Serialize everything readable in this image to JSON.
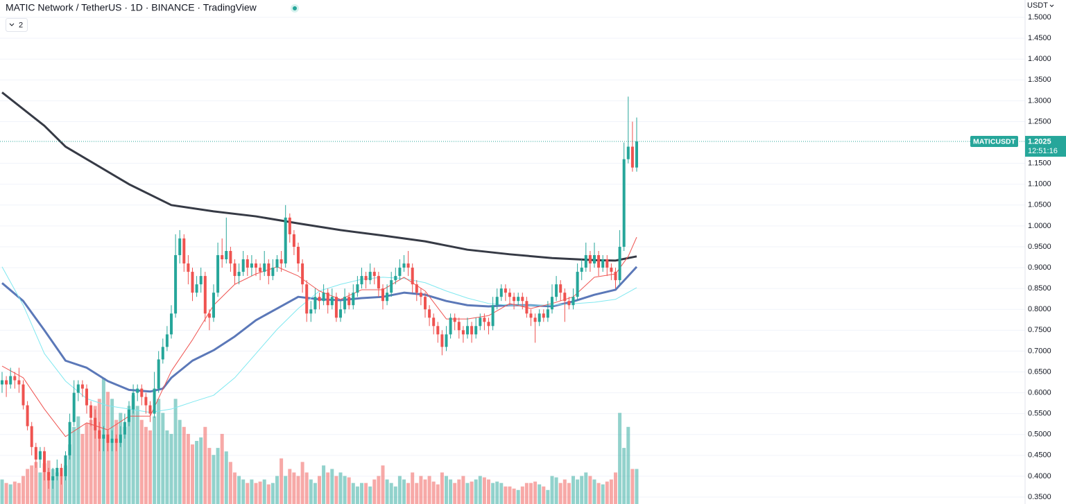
{
  "chart_data": {
    "type": "candlestick",
    "title": "MATIC Network / TetherUS · 1D · BINANCE · TradingView",
    "indicator_count": 2,
    "currency": "USDT",
    "symbol": "MATICUSDT",
    "countdown": "12:51:16",
    "up_color": "#26a69a",
    "down_color": "#ef5350",
    "grid": true,
    "ylim": [
      0.3334,
      1.5416
    ],
    "yticks": [
      {
        "value": 0.35,
        "label": "0.3500"
      },
      {
        "value": 0.4,
        "label": "0.4000"
      },
      {
        "value": 0.45,
        "label": "0.4500"
      },
      {
        "value": 0.5,
        "label": "0.5000"
      },
      {
        "value": 0.55,
        "label": "0.5500"
      },
      {
        "value": 0.6,
        "label": "0.6000"
      },
      {
        "value": 0.65,
        "label": "0.6500"
      },
      {
        "value": 0.7,
        "label": "0.7000"
      },
      {
        "value": 0.75,
        "label": "0.7500"
      },
      {
        "value": 0.8,
        "label": "0.8000"
      },
      {
        "value": 0.85,
        "label": "0.8500"
      },
      {
        "value": 0.9,
        "label": "0.9000"
      },
      {
        "value": 0.95,
        "label": "0.9500"
      },
      {
        "value": 1.0,
        "label": "1.0000"
      },
      {
        "value": 1.05,
        "label": "1.0500"
      },
      {
        "value": 1.1,
        "label": "1.1000"
      },
      {
        "value": 1.15,
        "label": "1.1500"
      },
      {
        "value": 1.25,
        "label": "1.2500"
      },
      {
        "value": 1.3,
        "label": "1.3000"
      },
      {
        "value": 1.35,
        "label": "1.3500"
      },
      {
        "value": 1.4,
        "label": "1.4000"
      },
      {
        "value": 1.45,
        "label": "1.4500"
      },
      {
        "value": 1.5,
        "label": "1.5000"
      }
    ],
    "open": [
      0.62,
      0.63,
      0.62,
      0.64,
      0.63,
      0.62,
      0.57,
      0.52,
      0.47,
      0.44,
      0.46,
      0.41,
      0.39,
      0.4,
      0.42,
      0.4,
      0.45,
      0.53,
      0.6,
      0.62,
      0.61,
      0.57,
      0.54,
      0.51,
      0.49,
      0.5,
      0.48,
      0.49,
      0.48,
      0.5,
      0.53,
      0.56,
      0.6,
      0.61,
      0.59,
      0.57,
      0.55,
      0.61,
      0.68,
      0.71,
      0.74,
      0.79,
      0.93,
      0.97,
      0.91,
      0.89,
      0.84,
      0.86,
      0.88,
      0.79,
      0.78,
      0.84,
      0.93,
      0.92,
      0.94,
      0.91,
      0.88,
      0.89,
      0.92,
      0.9,
      0.91,
      0.9,
      0.89,
      0.91,
      0.88,
      0.9,
      0.92,
      0.91,
      1.02,
      0.98,
      0.95,
      0.91,
      0.86,
      0.79,
      0.8,
      0.83,
      0.82,
      0.84,
      0.81,
      0.83,
      0.78,
      0.8,
      0.83,
      0.81,
      0.84,
      0.86,
      0.88,
      0.87,
      0.89,
      0.88,
      0.85,
      0.82,
      0.84,
      0.87,
      0.88,
      0.9,
      0.91,
      0.9,
      0.86,
      0.84,
      0.83,
      0.8,
      0.78,
      0.76,
      0.74,
      0.71,
      0.74,
      0.78,
      0.77,
      0.75,
      0.74,
      0.76,
      0.74,
      0.76,
      0.78,
      0.77,
      0.76,
      0.81,
      0.83,
      0.85,
      0.84,
      0.83,
      0.82,
      0.83,
      0.82,
      0.79,
      0.78,
      0.77,
      0.79,
      0.78,
      0.8,
      0.83,
      0.86,
      0.84,
      0.82,
      0.81,
      0.83,
      0.89,
      0.9,
      0.93,
      0.91,
      0.93,
      0.9,
      0.92,
      0.9,
      0.89,
      0.87,
      0.95,
      1.16,
      1.19,
      1.14
    ],
    "high": [
      0.65,
      0.64,
      0.66,
      0.65,
      0.66,
      0.63,
      0.58,
      0.53,
      0.48,
      0.47,
      0.47,
      0.42,
      0.42,
      0.44,
      0.43,
      0.46,
      0.55,
      0.63,
      0.63,
      0.63,
      0.62,
      0.58,
      0.56,
      0.53,
      0.52,
      0.51,
      0.51,
      0.5,
      0.52,
      0.55,
      0.58,
      0.62,
      0.62,
      0.62,
      0.6,
      0.58,
      0.65,
      0.7,
      0.73,
      0.76,
      0.81,
      0.98,
      0.99,
      0.98,
      0.93,
      0.9,
      0.88,
      0.9,
      0.89,
      0.8,
      0.86,
      0.96,
      0.97,
      1.02,
      0.95,
      0.92,
      0.91,
      0.94,
      0.93,
      0.93,
      0.92,
      0.91,
      0.94,
      0.92,
      0.92,
      0.93,
      0.94,
      1.05,
      1.03,
      0.99,
      0.96,
      0.92,
      0.87,
      0.82,
      0.85,
      0.84,
      0.86,
      0.85,
      0.85,
      0.84,
      0.82,
      0.85,
      0.84,
      0.86,
      0.88,
      0.9,
      0.89,
      0.91,
      0.9,
      0.89,
      0.86,
      0.86,
      0.89,
      0.9,
      0.92,
      0.93,
      0.94,
      0.91,
      0.87,
      0.85,
      0.84,
      0.81,
      0.79,
      0.77,
      0.75,
      0.76,
      0.79,
      0.79,
      0.78,
      0.76,
      0.78,
      0.77,
      0.78,
      0.79,
      0.79,
      0.78,
      0.83,
      0.85,
      0.86,
      0.86,
      0.85,
      0.84,
      0.84,
      0.84,
      0.83,
      0.8,
      0.79,
      0.8,
      0.8,
      0.82,
      0.86,
      0.88,
      0.87,
      0.85,
      0.83,
      0.85,
      0.91,
      0.92,
      0.96,
      0.94,
      0.96,
      0.94,
      0.93,
      0.93,
      0.91,
      0.9,
      0.99,
      1.2,
      1.31,
      1.25,
      1.26
    ],
    "low": [
      0.6,
      0.59,
      0.61,
      0.61,
      0.6,
      0.56,
      0.51,
      0.45,
      0.42,
      0.42,
      0.39,
      0.37,
      0.37,
      0.39,
      0.38,
      0.39,
      0.44,
      0.52,
      0.58,
      0.59,
      0.55,
      0.52,
      0.49,
      0.46,
      0.46,
      0.46,
      0.46,
      0.46,
      0.47,
      0.49,
      0.52,
      0.55,
      0.58,
      0.57,
      0.55,
      0.53,
      0.54,
      0.6,
      0.67,
      0.7,
      0.73,
      0.78,
      0.91,
      0.89,
      0.86,
      0.82,
      0.83,
      0.84,
      0.77,
      0.75,
      0.77,
      0.83,
      0.9,
      0.91,
      0.89,
      0.86,
      0.86,
      0.88,
      0.88,
      0.88,
      0.88,
      0.87,
      0.88,
      0.86,
      0.87,
      0.89,
      0.89,
      0.9,
      0.96,
      0.93,
      0.89,
      0.84,
      0.77,
      0.77,
      0.79,
      0.8,
      0.81,
      0.79,
      0.8,
      0.77,
      0.77,
      0.79,
      0.8,
      0.8,
      0.83,
      0.85,
      0.85,
      0.86,
      0.86,
      0.83,
      0.8,
      0.81,
      0.83,
      0.86,
      0.87,
      0.89,
      0.88,
      0.84,
      0.82,
      0.81,
      0.78,
      0.76,
      0.74,
      0.72,
      0.69,
      0.7,
      0.73,
      0.75,
      0.73,
      0.72,
      0.73,
      0.72,
      0.73,
      0.75,
      0.75,
      0.74,
      0.75,
      0.8,
      0.82,
      0.82,
      0.81,
      0.8,
      0.81,
      0.8,
      0.78,
      0.76,
      0.72,
      0.76,
      0.77,
      0.77,
      0.79,
      0.82,
      0.82,
      0.77,
      0.8,
      0.8,
      0.82,
      0.87,
      0.89,
      0.89,
      0.9,
      0.88,
      0.89,
      0.88,
      0.87,
      0.85,
      0.86,
      0.94,
      1.15,
      1.13,
      1.13
    ],
    "close": [
      0.63,
      0.62,
      0.64,
      0.63,
      0.62,
      0.57,
      0.52,
      0.47,
      0.44,
      0.46,
      0.41,
      0.39,
      0.4,
      0.42,
      0.4,
      0.45,
      0.53,
      0.6,
      0.62,
      0.61,
      0.57,
      0.54,
      0.51,
      0.49,
      0.5,
      0.48,
      0.49,
      0.48,
      0.5,
      0.53,
      0.56,
      0.6,
      0.61,
      0.59,
      0.57,
      0.55,
      0.61,
      0.68,
      0.71,
      0.74,
      0.79,
      0.93,
      0.97,
      0.91,
      0.89,
      0.84,
      0.86,
      0.88,
      0.79,
      0.78,
      0.84,
      0.93,
      0.92,
      0.94,
      0.91,
      0.88,
      0.89,
      0.92,
      0.9,
      0.91,
      0.9,
      0.89,
      0.91,
      0.88,
      0.9,
      0.92,
      0.91,
      1.02,
      0.98,
      0.95,
      0.91,
      0.86,
      0.79,
      0.8,
      0.83,
      0.82,
      0.84,
      0.81,
      0.83,
      0.78,
      0.8,
      0.83,
      0.81,
      0.84,
      0.86,
      0.88,
      0.87,
      0.89,
      0.88,
      0.85,
      0.82,
      0.84,
      0.87,
      0.88,
      0.9,
      0.91,
      0.9,
      0.86,
      0.84,
      0.83,
      0.8,
      0.78,
      0.76,
      0.74,
      0.71,
      0.74,
      0.78,
      0.77,
      0.75,
      0.74,
      0.76,
      0.74,
      0.76,
      0.78,
      0.77,
      0.76,
      0.81,
      0.83,
      0.85,
      0.84,
      0.83,
      0.82,
      0.83,
      0.82,
      0.79,
      0.78,
      0.77,
      0.79,
      0.78,
      0.8,
      0.83,
      0.86,
      0.84,
      0.82,
      0.81,
      0.83,
      0.89,
      0.9,
      0.93,
      0.91,
      0.93,
      0.9,
      0.92,
      0.9,
      0.89,
      0.87,
      0.95,
      1.16,
      1.19,
      1.14,
      1.2025
    ],
    "volume": [
      35,
      30,
      28,
      32,
      30,
      40,
      50,
      55,
      60,
      45,
      58,
      62,
      50,
      45,
      40,
      55,
      85,
      110,
      125,
      100,
      115,
      120,
      140,
      150,
      180,
      160,
      150,
      120,
      130,
      110,
      140,
      155,
      140,
      120,
      110,
      105,
      125,
      150,
      130,
      105,
      100,
      150,
      120,
      110,
      100,
      85,
      90,
      95,
      110,
      80,
      70,
      80,
      100,
      75,
      60,
      45,
      40,
      35,
      30,
      35,
      30,
      32,
      35,
      28,
      30,
      40,
      65,
      40,
      50,
      45,
      40,
      60,
      45,
      35,
      30,
      40,
      55,
      45,
      50,
      40,
      45,
      40,
      38,
      30,
      25,
      30,
      30,
      25,
      35,
      40,
      55,
      35,
      30,
      25,
      40,
      35,
      30,
      45,
      30,
      40,
      35,
      40,
      32,
      28,
      45,
      40,
      35,
      30,
      35,
      40,
      30,
      32,
      35,
      40,
      38,
      35,
      30,
      32,
      30,
      25,
      25,
      22,
      20,
      25,
      30,
      30,
      32,
      28,
      25,
      20,
      40,
      38,
      30,
      35,
      30,
      40,
      35,
      40,
      45,
      40,
      35,
      30,
      28,
      32,
      35,
      45,
      130,
      80,
      110,
      50,
      50
    ],
    "moving_averages": [
      {
        "color": "#363a45",
        "width": 3,
        "x": [
          0,
          10,
          15,
          30,
          40,
          50,
          60,
          70,
          80,
          90,
          100,
          110,
          120,
          130,
          140,
          145,
          150
        ],
        "values": [
          1.32,
          1.24,
          1.19,
          1.1,
          1.05,
          1.035,
          1.023,
          1.006,
          0.99,
          0.977,
          0.963,
          0.943,
          0.932,
          0.923,
          0.918,
          0.917,
          0.927
        ]
      },
      {
        "color": "#5b78b8",
        "width": 3,
        "x": [
          0,
          5,
          10,
          15,
          20,
          25,
          30,
          35,
          38,
          40,
          45,
          50,
          55,
          60,
          65,
          70,
          75,
          80,
          85,
          90,
          95,
          100,
          105,
          110,
          115,
          120,
          125,
          130,
          135,
          140,
          145,
          150
        ],
        "values": [
          0.863,
          0.82,
          0.75,
          0.677,
          0.66,
          0.628,
          0.607,
          0.603,
          0.61,
          0.636,
          0.677,
          0.702,
          0.735,
          0.774,
          0.802,
          0.83,
          0.824,
          0.822,
          0.827,
          0.83,
          0.84,
          0.835,
          0.82,
          0.81,
          0.807,
          0.81,
          0.81,
          0.807,
          0.819,
          0.835,
          0.847,
          0.902
        ]
      },
      {
        "color": "#7fe8f0",
        "width": 1,
        "x": [
          0,
          5,
          10,
          15,
          20,
          25,
          30,
          35,
          40,
          45,
          50,
          55,
          60,
          65,
          70,
          75,
          80,
          85,
          90,
          95,
          100,
          105,
          110,
          115,
          120,
          130,
          140,
          145,
          150
        ],
        "values": [
          0.902,
          0.81,
          0.694,
          0.628,
          0.586,
          0.569,
          0.561,
          0.553,
          0.561,
          0.578,
          0.594,
          0.636,
          0.694,
          0.752,
          0.802,
          0.844,
          0.86,
          0.872,
          0.877,
          0.874,
          0.864,
          0.844,
          0.827,
          0.814,
          0.81,
          0.81,
          0.817,
          0.824,
          0.852
        ]
      },
      {
        "color": "#ef5350",
        "width": 1,
        "x": [
          0,
          5,
          10,
          15,
          20,
          25,
          30,
          35,
          40,
          45,
          50,
          55,
          60,
          65,
          70,
          75,
          80,
          85,
          90,
          95,
          100,
          105,
          110,
          115,
          120,
          125,
          130,
          135,
          140,
          145,
          148,
          150
        ],
        "values": [
          0.664,
          0.636,
          0.561,
          0.495,
          0.528,
          0.511,
          0.544,
          0.544,
          0.652,
          0.727,
          0.81,
          0.86,
          0.885,
          0.902,
          0.88,
          0.844,
          0.824,
          0.847,
          0.847,
          0.877,
          0.844,
          0.777,
          0.777,
          0.785,
          0.814,
          0.802,
          0.814,
          0.83,
          0.877,
          0.885,
          0.927,
          0.973
        ]
      }
    ]
  }
}
